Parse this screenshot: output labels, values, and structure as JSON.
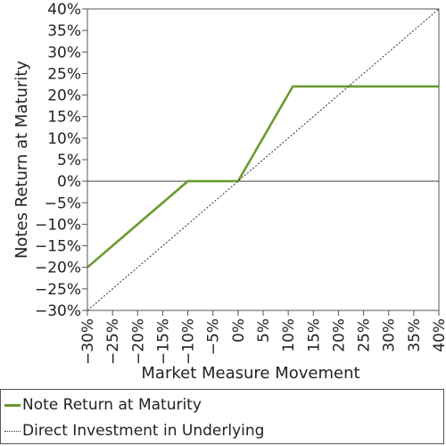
{
  "chart_data": {
    "type": "line",
    "xlabel": "Market Measure Movement",
    "ylabel": "Notes Return at Maturity",
    "xlim": [
      -30,
      40
    ],
    "ylim": [
      -30,
      40
    ],
    "x_ticks": [
      "−30%",
      "−25%",
      "−20%",
      "−15%",
      "−10%",
      "−5%",
      "0%",
      "5%",
      "10%",
      "15%",
      "20%",
      "25%",
      "30%",
      "35%",
      "40%"
    ],
    "x_tick_values": [
      -30,
      -25,
      -20,
      -15,
      -10,
      -5,
      0,
      5,
      10,
      15,
      20,
      25,
      30,
      35,
      40
    ],
    "y_ticks": [
      "40%",
      "35%",
      "30%",
      "25%",
      "20%",
      "15%",
      "10%",
      "5%",
      "0%",
      "−5%",
      "−10%",
      "−15%",
      "−20%",
      "−25%",
      "−30%"
    ],
    "y_tick_values": [
      40,
      35,
      30,
      25,
      20,
      15,
      10,
      5,
      0,
      -5,
      -10,
      -15,
      -20,
      -25,
      -30
    ],
    "grid": "none",
    "legend_position": "bottom",
    "series": [
      {
        "name": "Note Return at Maturity",
        "color": "#6a9a2f",
        "style": "solid",
        "x": [
          -30,
          -10,
          0,
          10.9,
          40
        ],
        "y": [
          -20,
          0,
          0,
          22,
          22
        ]
      },
      {
        "name": "Direct Investment in Underlying",
        "color": "#333333",
        "style": "dotted",
        "x": [
          -30,
          40
        ],
        "y": [
          -30,
          40
        ]
      }
    ]
  }
}
